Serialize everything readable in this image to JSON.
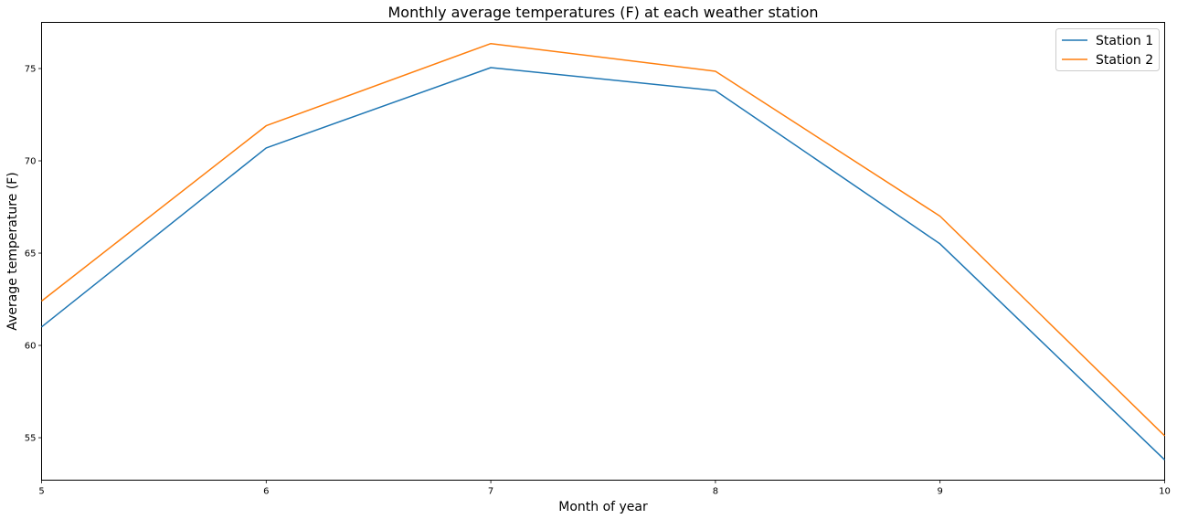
{
  "chart_data": {
    "type": "line",
    "title": "Monthly average temperatures (F) at each weather station",
    "xlabel": "Month of year",
    "ylabel": "Average temperature (F)",
    "x": [
      5,
      6,
      7,
      8,
      9,
      10
    ],
    "series": [
      {
        "name": "Station 1",
        "color": "#1f77b4",
        "values": [
          61.0,
          70.7,
          75.05,
          73.8,
          65.5,
          53.8
        ]
      },
      {
        "name": "Station 2",
        "color": "#ff7f0e",
        "values": [
          62.4,
          71.9,
          76.35,
          74.85,
          67.0,
          55.1
        ]
      }
    ],
    "xlim": [
      5,
      10
    ],
    "ylim": [
      52.7,
      77.5
    ],
    "xticks": [
      5,
      6,
      7,
      8,
      9,
      10
    ],
    "yticks": [
      55,
      60,
      65,
      70,
      75
    ],
    "grid": false,
    "legend_position": "top-right"
  }
}
